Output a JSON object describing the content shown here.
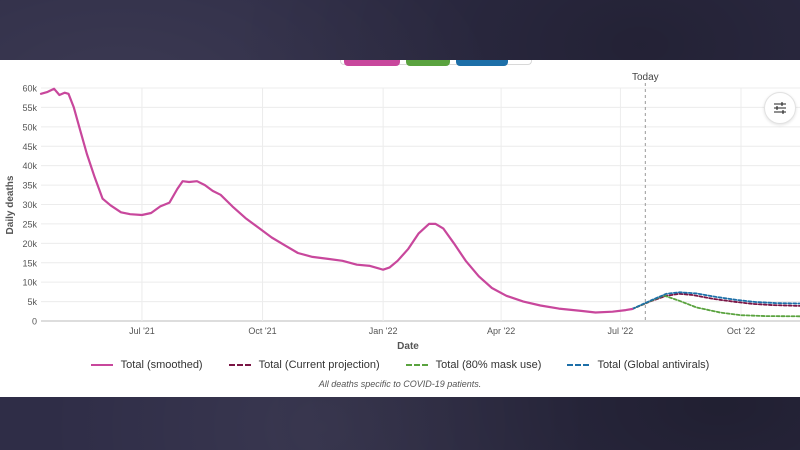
{
  "colors": {
    "smoothed": "#c8479c",
    "current_projection": "#7a1545",
    "mask_use": "#5aa33f",
    "antivirals": "#1d6fa8",
    "today_line": "#9a9a9a"
  },
  "icons": {
    "settings": "sliders-icon"
  },
  "footnote": "All deaths specific to COVID-19 patients.",
  "chart_data": {
    "type": "line",
    "xlabel": "Date",
    "ylabel": "Daily deaths",
    "ylim": [
      0,
      60000
    ],
    "y_ticks": [
      {
        "value": 0,
        "label": "0"
      },
      {
        "value": 5000,
        "label": "5k"
      },
      {
        "value": 10000,
        "label": "10k"
      },
      {
        "value": 15000,
        "label": "15k"
      },
      {
        "value": 20000,
        "label": "20k"
      },
      {
        "value": 25000,
        "label": "25k"
      },
      {
        "value": 30000,
        "label": "30k"
      },
      {
        "value": 35000,
        "label": "35k"
      },
      {
        "value": 40000,
        "label": "40k"
      },
      {
        "value": 45000,
        "label": "45k"
      },
      {
        "value": 50000,
        "label": "50k"
      },
      {
        "value": 55000,
        "label": "55k"
      },
      {
        "value": 60000,
        "label": "60k"
      }
    ],
    "xlim": [
      "2021-04-15",
      "2022-11-15"
    ],
    "x_ticks": [
      {
        "date": "2021-07-01",
        "label": "Jul '21"
      },
      {
        "date": "2021-10-01",
        "label": "Oct '21"
      },
      {
        "date": "2022-01-01",
        "label": "Jan '22"
      },
      {
        "date": "2022-04-01",
        "label": "Apr '22"
      },
      {
        "date": "2022-07-01",
        "label": "Jul '22"
      },
      {
        "date": "2022-10-01",
        "label": "Oct '22"
      }
    ],
    "grid": true,
    "today": {
      "date": "2022-07-20",
      "label": "Today"
    },
    "legend_position": "bottom",
    "series": [
      {
        "key": "smoothed",
        "name": "Total (smoothed)",
        "style": "solid",
        "points": [
          [
            "2021-04-15",
            58500
          ],
          [
            "2021-04-20",
            59000
          ],
          [
            "2021-04-25",
            59800
          ],
          [
            "2021-04-29",
            58200
          ],
          [
            "2021-05-03",
            58800
          ],
          [
            "2021-05-06",
            58500
          ],
          [
            "2021-05-10",
            55000
          ],
          [
            "2021-05-15",
            49000
          ],
          [
            "2021-05-20",
            43000
          ],
          [
            "2021-05-26",
            37000
          ],
          [
            "2021-06-01",
            31500
          ],
          [
            "2021-06-07",
            29800
          ],
          [
            "2021-06-15",
            28000
          ],
          [
            "2021-06-22",
            27500
          ],
          [
            "2021-07-01",
            27300
          ],
          [
            "2021-07-08",
            27800
          ],
          [
            "2021-07-15",
            29500
          ],
          [
            "2021-07-22",
            30500
          ],
          [
            "2021-07-28",
            34000
          ],
          [
            "2021-08-01",
            36000
          ],
          [
            "2021-08-06",
            35800
          ],
          [
            "2021-08-12",
            36000
          ],
          [
            "2021-08-18",
            35000
          ],
          [
            "2021-08-24",
            33500
          ],
          [
            "2021-08-30",
            32500
          ],
          [
            "2021-09-08",
            29500
          ],
          [
            "2021-09-18",
            26500
          ],
          [
            "2021-09-28",
            24000
          ],
          [
            "2021-10-08",
            21500
          ],
          [
            "2021-10-18",
            19500
          ],
          [
            "2021-10-28",
            17500
          ],
          [
            "2021-11-08",
            16500
          ],
          [
            "2021-11-20",
            16000
          ],
          [
            "2021-12-01",
            15500
          ],
          [
            "2021-12-12",
            14500
          ],
          [
            "2021-12-22",
            14200
          ],
          [
            "2021-12-28",
            13600
          ],
          [
            "2022-01-01",
            13200
          ],
          [
            "2022-01-06",
            13800
          ],
          [
            "2022-01-12",
            15500
          ],
          [
            "2022-01-20",
            18500
          ],
          [
            "2022-01-28",
            22500
          ],
          [
            "2022-02-05",
            25000
          ],
          [
            "2022-02-10",
            25000
          ],
          [
            "2022-02-16",
            23800
          ],
          [
            "2022-02-24",
            20000
          ],
          [
            "2022-03-05",
            15500
          ],
          [
            "2022-03-15",
            11500
          ],
          [
            "2022-03-25",
            8500
          ],
          [
            "2022-04-05",
            6500
          ],
          [
            "2022-04-18",
            5000
          ],
          [
            "2022-05-01",
            4000
          ],
          [
            "2022-05-15",
            3200
          ],
          [
            "2022-06-01",
            2600
          ],
          [
            "2022-06-12",
            2200
          ],
          [
            "2022-06-25",
            2400
          ],
          [
            "2022-07-05",
            2800
          ],
          [
            "2022-07-10",
            3100
          ]
        ]
      },
      {
        "key": "current_projection",
        "name": "Total (Current projection)",
        "style": "dashed",
        "points": [
          [
            "2022-07-10",
            3100
          ],
          [
            "2022-07-25",
            5200
          ],
          [
            "2022-08-05",
            6500
          ],
          [
            "2022-08-15",
            7000
          ],
          [
            "2022-08-25",
            6700
          ],
          [
            "2022-09-10",
            5700
          ],
          [
            "2022-09-25",
            5000
          ],
          [
            "2022-10-10",
            4400
          ],
          [
            "2022-10-25",
            4100
          ],
          [
            "2022-11-15",
            3900
          ]
        ]
      },
      {
        "key": "mask_use",
        "name": "Total (80% mask use)",
        "style": "dashed",
        "points": [
          [
            "2022-07-10",
            3100
          ],
          [
            "2022-07-25",
            5300
          ],
          [
            "2022-08-03",
            6600
          ],
          [
            "2022-08-15",
            5200
          ],
          [
            "2022-08-28",
            3500
          ],
          [
            "2022-09-15",
            2200
          ],
          [
            "2022-10-01",
            1500
          ],
          [
            "2022-10-20",
            1250
          ],
          [
            "2022-11-15",
            1200
          ]
        ]
      },
      {
        "key": "antivirals",
        "name": "Total (Global antivirals)",
        "style": "dashed",
        "points": [
          [
            "2022-07-10",
            3100
          ],
          [
            "2022-07-25",
            5400
          ],
          [
            "2022-08-05",
            7000
          ],
          [
            "2022-08-15",
            7400
          ],
          [
            "2022-08-28",
            7100
          ],
          [
            "2022-09-12",
            6200
          ],
          [
            "2022-09-28",
            5400
          ],
          [
            "2022-10-12",
            4900
          ],
          [
            "2022-10-28",
            4600
          ],
          [
            "2022-11-15",
            4500
          ]
        ]
      }
    ],
    "footnote": "All deaths specific to COVID-19 patients."
  }
}
